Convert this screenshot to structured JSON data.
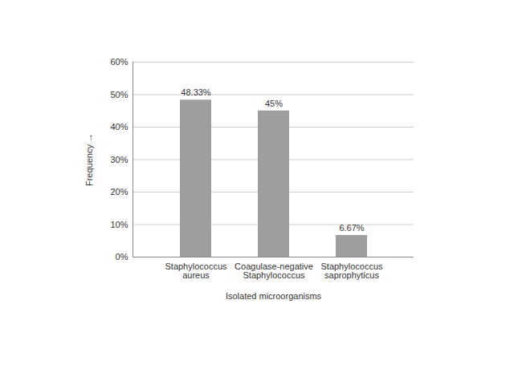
{
  "chart_data": {
    "type": "bar",
    "categories": [
      "Staphylococcus aureus",
      "Coagulase-negative Staphylococcus",
      "Staphylococcus saprophyticus"
    ],
    "values": [
      48.33,
      45,
      6.67
    ],
    "value_labels": [
      "48.33%",
      "45%",
      "6.67%"
    ],
    "data_labels": true,
    "color": "#9e9e9e",
    "xlabel": "Isolated microorganisms",
    "ylabel": "Frequency",
    "ylim": [
      0,
      60
    ],
    "yticks": [
      {
        "value": 0,
        "label": "0%"
      },
      {
        "value": 10,
        "label": "10%"
      },
      {
        "value": 20,
        "label": "20%"
      },
      {
        "value": 30,
        "label": "30%"
      },
      {
        "value": 40,
        "label": "40%"
      },
      {
        "value": 50,
        "label": "50%"
      },
      {
        "value": 60,
        "label": "60%"
      }
    ],
    "grid": true
  }
}
